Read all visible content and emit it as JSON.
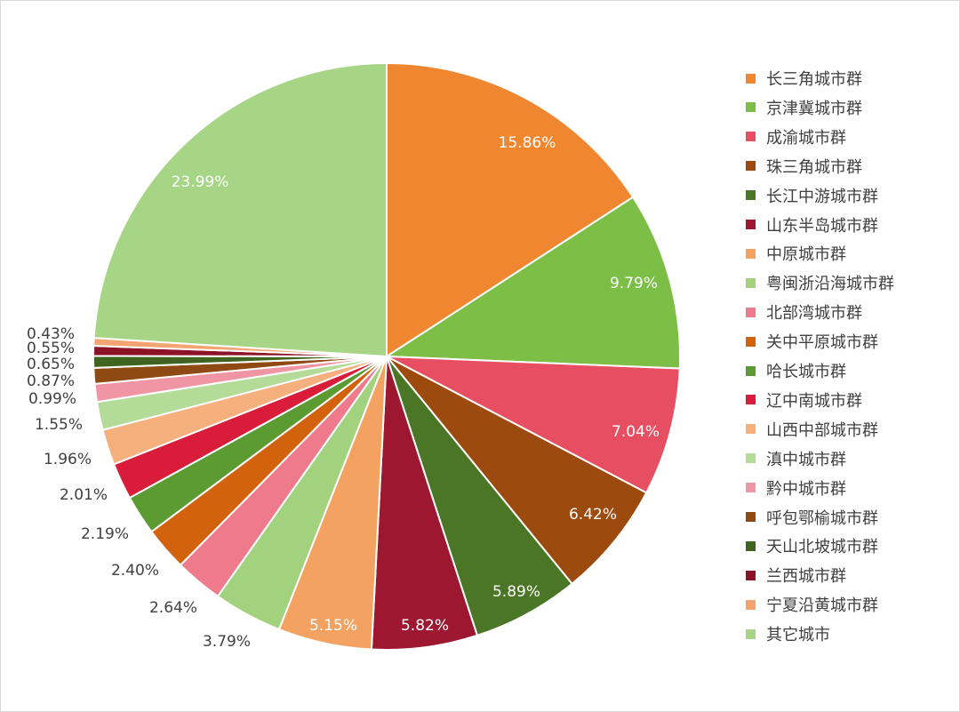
{
  "chart_data": {
    "type": "pie",
    "title": "",
    "start_angle_deg": 0,
    "direction": "clockwise",
    "slices": [
      {
        "label": "长三角城市群",
        "value": 15.86,
        "display": "15.86%",
        "color": "#F08730",
        "label_inside": true
      },
      {
        "label": "京津冀城市群",
        "value": 9.79,
        "display": "9.79%",
        "color": "#7DBE46",
        "label_inside": true
      },
      {
        "label": "成渝城市群",
        "value": 7.04,
        "display": "7.04%",
        "color": "#E84E62",
        "label_inside": true
      },
      {
        "label": "珠三角城市群",
        "value": 6.42,
        "display": "6.42%",
        "color": "#9C4A0E",
        "label_inside": true
      },
      {
        "label": "长江中游城市群",
        "value": 5.89,
        "display": "5.89%",
        "color": "#4A7626",
        "label_inside": true
      },
      {
        "label": "山东半岛城市群",
        "value": 5.82,
        "display": "5.82%",
        "color": "#9E1730",
        "label_inside": true
      },
      {
        "label": "中原城市群",
        "value": 5.15,
        "display": "5.15%",
        "color": "#F4A262",
        "label_inside": true
      },
      {
        "label": "粤闽浙沿海城市群",
        "value": 3.79,
        "display": "3.79%",
        "color": "#A2D27E",
        "label_inside": false
      },
      {
        "label": "北部湾城市群",
        "value": 2.64,
        "display": "2.64%",
        "color": "#EF7A8C",
        "label_inside": false
      },
      {
        "label": "关中平原城市群",
        "value": 2.4,
        "display": "2.40%",
        "color": "#D2620C",
        "label_inside": false
      },
      {
        "label": "哈长城市群",
        "value": 2.19,
        "display": "2.19%",
        "color": "#5C9A32",
        "label_inside": false
      },
      {
        "label": "辽中南城市群",
        "value": 2.01,
        "display": "2.01%",
        "color": "#D81C3A",
        "label_inside": false
      },
      {
        "label": "山西中部城市群",
        "value": 1.96,
        "display": "1.96%",
        "color": "#F5B07D",
        "label_inside": false
      },
      {
        "label": "滇中城市群",
        "value": 1.55,
        "display": "1.55%",
        "color": "#B5DB98",
        "label_inside": false
      },
      {
        "label": "黔中城市群",
        "value": 0.99,
        "display": "0.99%",
        "color": "#F095A3",
        "label_inside": false
      },
      {
        "label": "呼包鄂榆城市群",
        "value": 0.87,
        "display": "0.87%",
        "color": "#8E4A12",
        "label_inside": false
      },
      {
        "label": "天山北坡城市群",
        "value": 0.65,
        "display": "0.65%",
        "color": "#3F6420",
        "label_inside": false
      },
      {
        "label": "兰西城市群",
        "value": 0.55,
        "display": "0.55%",
        "color": "#8C1228",
        "label_inside": false
      },
      {
        "label": "宁夏沿黄城市群",
        "value": 0.43,
        "display": "0.43%",
        "color": "#F3A470",
        "label_inside": false
      },
      {
        "label": "其它城市",
        "value": 23.99,
        "display": "23.99%",
        "color": "#A6D585",
        "label_inside": true
      }
    ],
    "legend_position": "right"
  }
}
